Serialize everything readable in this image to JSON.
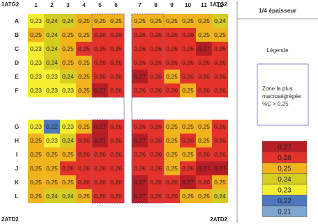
{
  "corner_labels": {
    "top_left": "1ATG2",
    "top_right": "1ATG2",
    "bottom_left": "2ATD2",
    "bottom_right": "2ATD2"
  },
  "side": {
    "header": "1/4 épaisseur",
    "legend_title": "Légende",
    "zone_note": [
      "Zone la plus",
      "macroségrégée",
      "%C > 0.25"
    ]
  },
  "colors": {
    "0.21": "#7fa7cf",
    "0.22": "#4e79bf",
    "0.23": "#f6ef31",
    "0.24": "#d6cd22",
    "0.25": "#f2b41c",
    "0.26": "#e5322b",
    "0.27": "#b71d24",
    "zone_border": "#7d63b0"
  },
  "chart_data": {
    "type": "heatmap",
    "title": "",
    "columns": [
      "1",
      "2",
      "3",
      "4",
      "5",
      "6",
      "7",
      "8",
      "9",
      "10",
      "11",
      "12"
    ],
    "rows": [
      "A",
      "B",
      "C",
      "D",
      "E",
      "F",
      "G",
      "H",
      "I",
      "J",
      "K",
      "L"
    ],
    "values": [
      [
        0.23,
        0.24,
        0.24,
        0.25,
        0.25,
        0.25,
        0.25,
        0.25,
        0.25,
        0.25,
        0.25,
        0.24
      ],
      [
        0.25,
        0.24,
        0.25,
        0.25,
        0.26,
        0.26,
        0.26,
        0.26,
        0.26,
        0.26,
        0.25,
        0.25
      ],
      [
        0.23,
        0.24,
        0.25,
        0.26,
        0.26,
        0.26,
        0.26,
        0.26,
        0.26,
        0.26,
        0.27,
        0.26
      ],
      [
        0.23,
        0.24,
        0.25,
        0.25,
        0.26,
        0.26,
        0.26,
        0.26,
        0.26,
        0.26,
        0.26,
        0.26
      ],
      [
        0.23,
        0.23,
        0.24,
        0.25,
        0.26,
        0.26,
        0.27,
        0.26,
        0.25,
        0.26,
        0.26,
        0.26
      ],
      [
        0.23,
        0.23,
        0.23,
        0.25,
        0.27,
        0.26,
        0.26,
        0.26,
        0.26,
        0.25,
        0.26,
        0.26
      ],
      [
        0.23,
        0.22,
        0.23,
        0.25,
        0.27,
        0.26,
        0.26,
        0.26,
        0.25,
        0.25,
        0.25,
        0.26
      ],
      [
        0.25,
        0.23,
        0.24,
        0.26,
        0.27,
        0.26,
        0.27,
        0.26,
        0.25,
        0.26,
        0.25,
        0.26
      ],
      [
        0.25,
        0.25,
        0.25,
        0.26,
        0.26,
        0.26,
        0.26,
        0.26,
        0.25,
        0.25,
        0.26,
        0.26
      ],
      [
        0.25,
        0.25,
        0.26,
        0.26,
        0.26,
        0.26,
        0.26,
        0.26,
        0.25,
        0.26,
        0.27,
        0.27
      ],
      [
        0.25,
        0.25,
        0.25,
        0.26,
        0.26,
        0.26,
        0.27,
        0.26,
        0.26,
        0.27,
        0.26,
        0.25
      ],
      [
        0.25,
        0.24,
        0.24,
        0.25,
        0.26,
        0.26,
        0.27,
        0.26,
        0.26,
        0.25,
        0.25,
        0.24
      ]
    ],
    "legend": [
      "0,27",
      "0,26",
      "0,25",
      "0,24",
      "0,23",
      "0,22",
      "0,21"
    ],
    "legend_values": [
      0.27,
      0.26,
      0.25,
      0.24,
      0.23,
      0.22,
      0.21
    ]
  }
}
